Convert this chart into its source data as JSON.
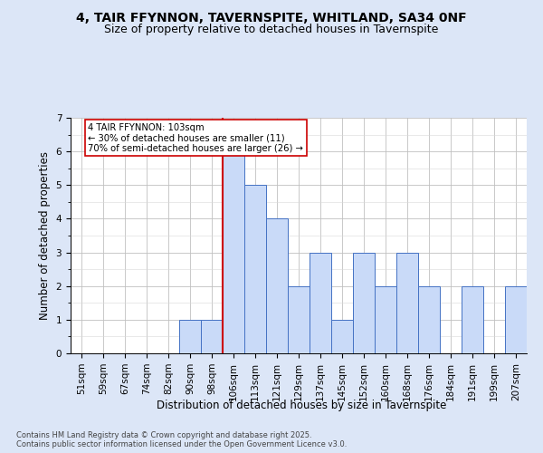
{
  "title_line1": "4, TAIR FFYNNON, TAVERNSPITE, WHITLAND, SA34 0NF",
  "title_line2": "Size of property relative to detached houses in Tavernspite",
  "xlabel": "Distribution of detached houses by size in Tavernspite",
  "ylabel": "Number of detached properties",
  "categories": [
    "51sqm",
    "59sqm",
    "67sqm",
    "74sqm",
    "82sqm",
    "90sqm",
    "98sqm",
    "106sqm",
    "113sqm",
    "121sqm",
    "129sqm",
    "137sqm",
    "145sqm",
    "152sqm",
    "160sqm",
    "168sqm",
    "176sqm",
    "184sqm",
    "191sqm",
    "199sqm",
    "207sqm"
  ],
  "values": [
    0,
    0,
    0,
    0,
    0,
    1,
    1,
    6,
    5,
    4,
    2,
    3,
    1,
    3,
    2,
    3,
    2,
    0,
    2,
    0,
    2
  ],
  "bar_color": "#c9daf8",
  "bar_edge_color": "#4472c4",
  "vline_color": "#cc0000",
  "annotation_text": "4 TAIR FFYNNON: 103sqm\n← 30% of detached houses are smaller (11)\n70% of semi-detached houses are larger (26) →",
  "annotation_box_color": "#ffffff",
  "annotation_box_edge": "#cc0000",
  "ylim": [
    0,
    7
  ],
  "yticks": [
    0,
    1,
    2,
    3,
    4,
    5,
    6,
    7
  ],
  "footer": "Contains HM Land Registry data © Crown copyright and database right 2025.\nContains public sector information licensed under the Open Government Licence v3.0.",
  "bg_color": "#dce6f7",
  "plot_bg_color": "#ffffff",
  "title_fontsize": 10,
  "subtitle_fontsize": 9,
  "tick_fontsize": 7.5,
  "label_fontsize": 8.5,
  "footer_fontsize": 6
}
